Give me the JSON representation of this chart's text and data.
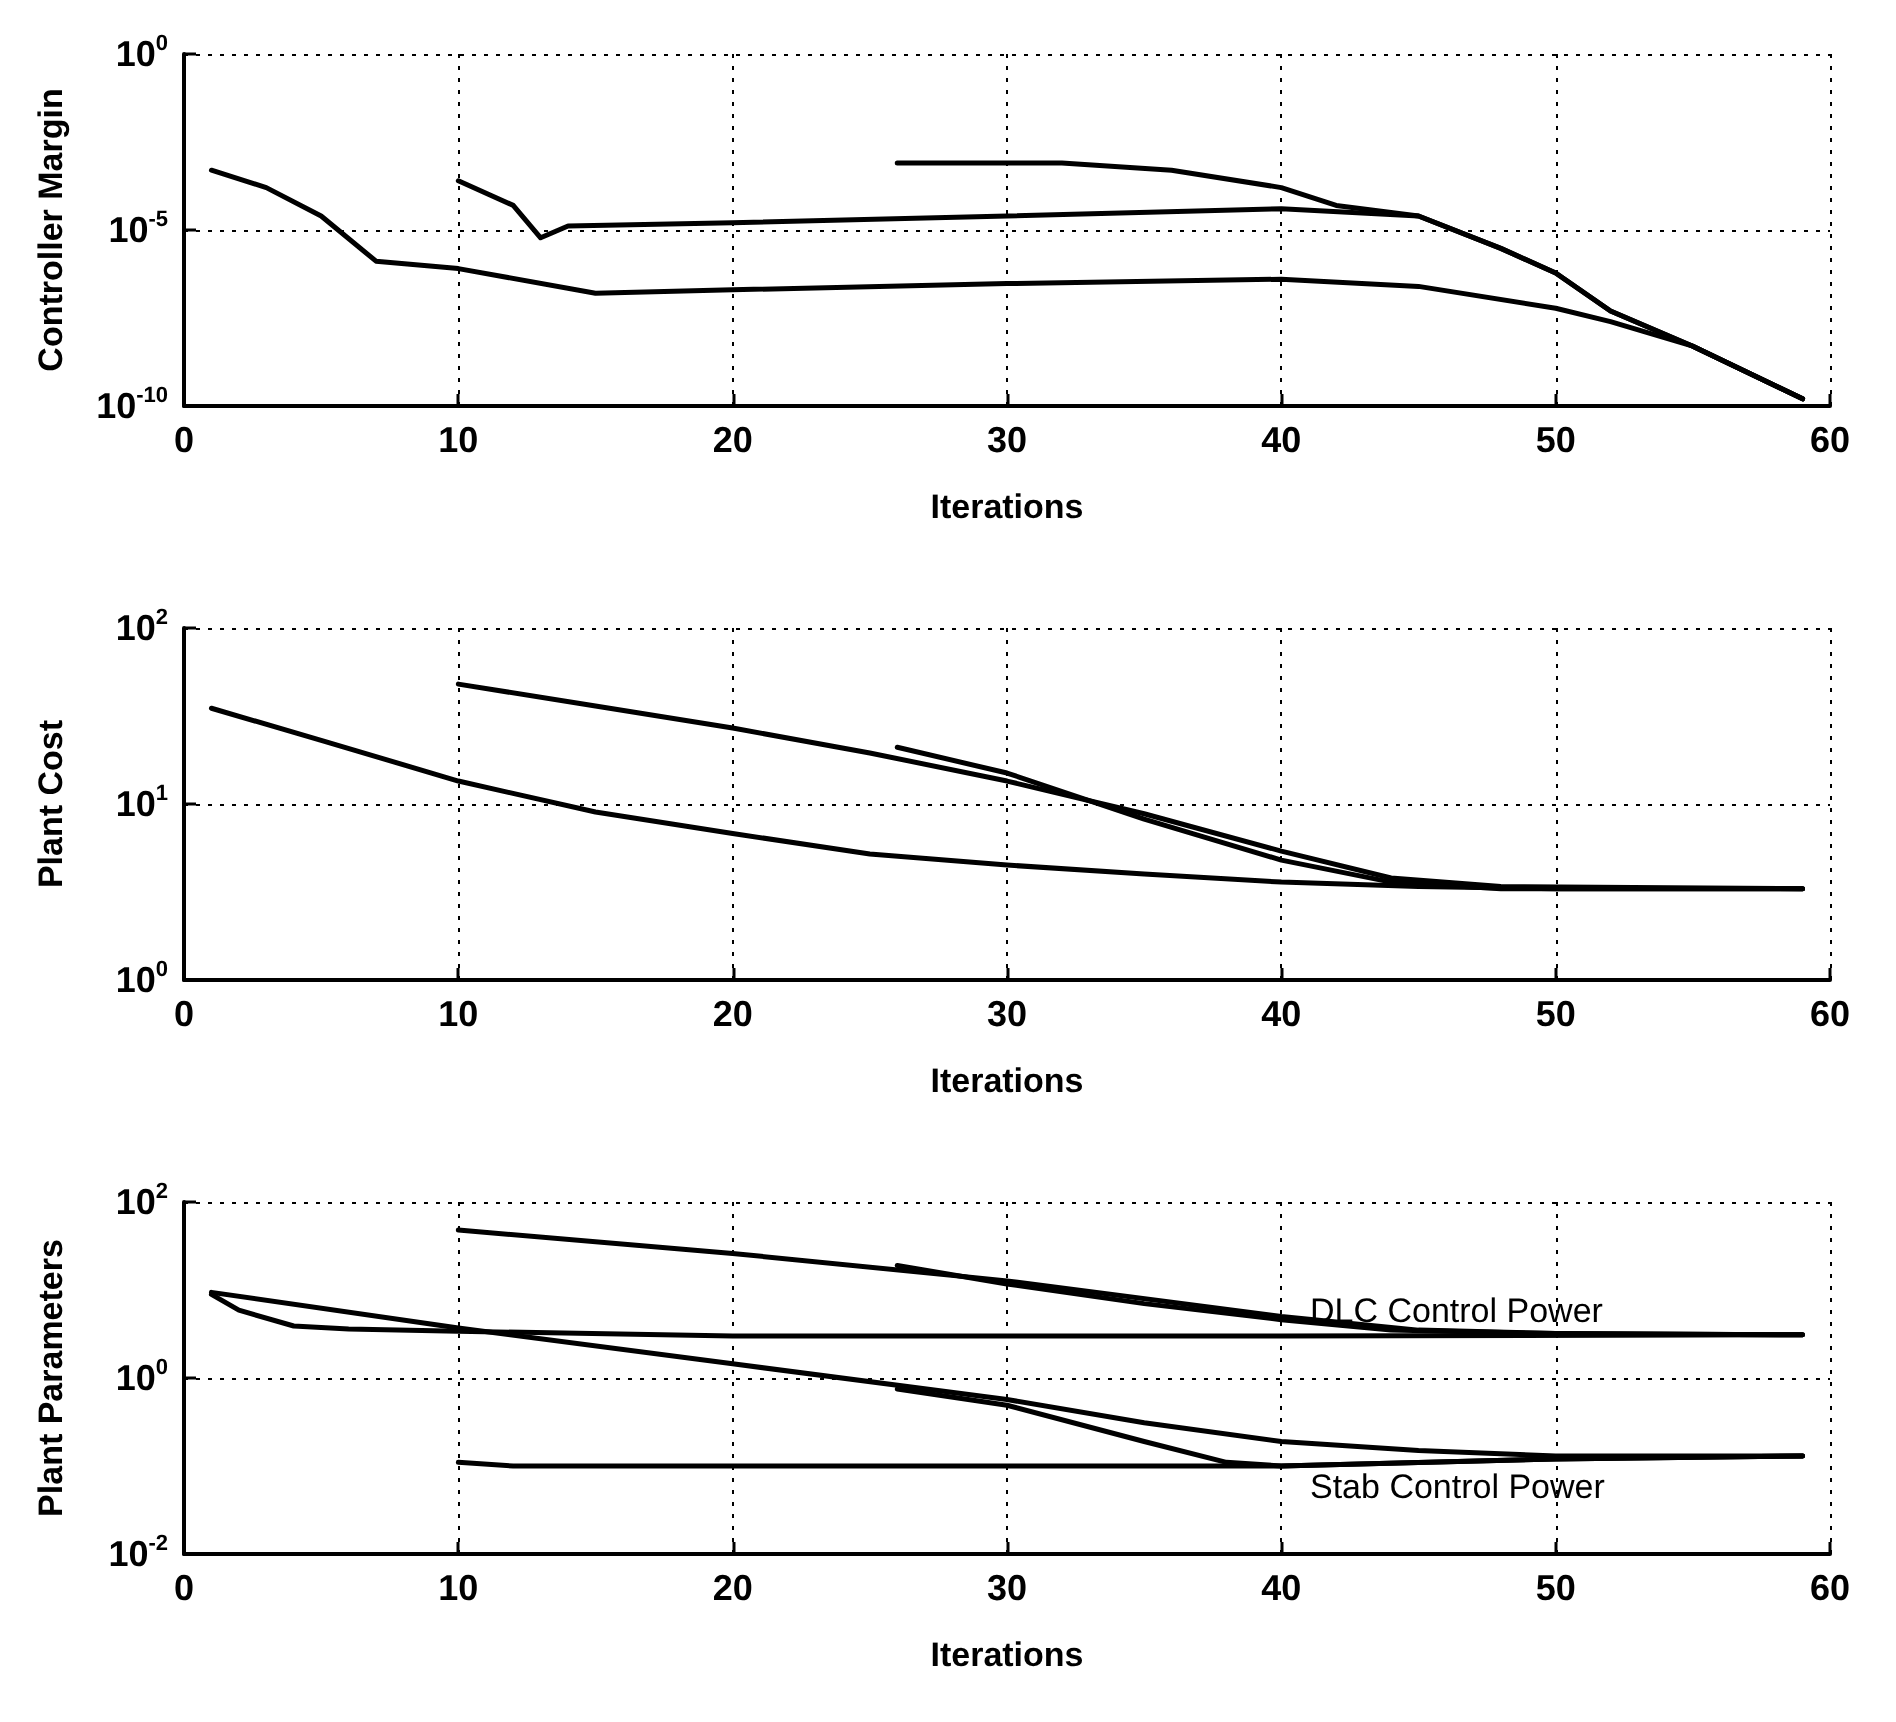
{
  "chart_data": [
    {
      "type": "line",
      "xlabel": "Iterations",
      "ylabel": "Controller Margin",
      "log": "y",
      "grid": true,
      "marker": "none",
      "line_style": "solid",
      "xlim": [
        0,
        60
      ],
      "xticks": [
        0,
        10,
        20,
        30,
        40,
        50,
        60
      ],
      "ylim": [
        1e-10,
        1
      ],
      "yticks": [
        {
          "value": 1e-10,
          "label": "10$^{-10}$"
        },
        {
          "value": 1e-05,
          "label": "10$^{-5}$"
        },
        {
          "value": 1,
          "label": "10$^{0}$"
        }
      ],
      "series": [
        {
          "color": "#000000",
          "x": [
            1,
            3,
            5,
            7,
            10,
            15,
            20,
            30,
            40,
            45,
            50,
            52,
            55,
            59
          ],
          "values": [
            0.0005,
            0.00016,
            2.5e-05,
            1.3e-06,
            8e-07,
            1.6e-07,
            2e-07,
            3e-07,
            4e-07,
            2.5e-07,
            6e-08,
            2.5e-08,
            5e-09,
            1.6e-10
          ]
        },
        {
          "color": "#000000",
          "x": [
            10,
            12,
            13,
            14,
            20,
            30,
            40,
            45,
            48,
            50,
            52,
            55,
            59
          ],
          "values": [
            0.00025,
            5e-05,
            6e-06,
            1.3e-05,
            1.6e-05,
            2.5e-05,
            4e-05,
            2.5e-05,
            3e-06,
            6e-07,
            5e-08,
            5e-09,
            1.6e-10
          ]
        },
        {
          "color": "#000000",
          "x": [
            26,
            32,
            36,
            40,
            42,
            45,
            48,
            50,
            52,
            55,
            59
          ],
          "values": [
            0.0008,
            0.0008,
            0.0005,
            0.00016,
            5e-05,
            2.5e-05,
            3e-06,
            6e-07,
            5e-08,
            5e-09,
            1.6e-10
          ]
        }
      ]
    },
    {
      "type": "line",
      "xlabel": "Iterations",
      "ylabel": "Plant Cost",
      "log": "y",
      "grid": true,
      "marker": "none",
      "line_style": "solid",
      "xlim": [
        0,
        60
      ],
      "xticks": [
        0,
        10,
        20,
        30,
        40,
        50,
        60
      ],
      "ylim": [
        1,
        100
      ],
      "yticks": [
        {
          "value": 1,
          "label": "10$^{0}$"
        },
        {
          "value": 10,
          "label": "10$^{1}$"
        },
        {
          "value": 100,
          "label": "10$^{2}$"
        }
      ],
      "series": [
        {
          "color": "#000000",
          "x": [
            1,
            5,
            10,
            15,
            20,
            25,
            30,
            35,
            40,
            45,
            50,
            59
          ],
          "values": [
            35,
            23,
            13.5,
            9,
            6.8,
            5.2,
            4.5,
            4,
            3.6,
            3.4,
            3.3,
            3.3
          ]
        },
        {
          "color": "#000000",
          "x": [
            10,
            15,
            20,
            25,
            30,
            35,
            40,
            44,
            48,
            59
          ],
          "values": [
            48,
            36,
            27,
            19.5,
            13.5,
            8.8,
            5.4,
            3.8,
            3.4,
            3.3
          ]
        },
        {
          "color": "#000000",
          "x": [
            26,
            30,
            35,
            40,
            44,
            48,
            59
          ],
          "values": [
            21,
            15,
            8.2,
            4.8,
            3.6,
            3.3,
            3.3
          ]
        }
      ]
    },
    {
      "type": "line",
      "xlabel": "Iterations",
      "ylabel": "Plant Parameters",
      "log": "y",
      "grid": true,
      "marker": "none",
      "line_style": "solid",
      "xlim": [
        0,
        60
      ],
      "xticks": [
        0,
        10,
        20,
        30,
        40,
        50,
        60
      ],
      "ylim": [
        0.01,
        100
      ],
      "yticks": [
        {
          "value": 0.01,
          "label": "10$^{-2}$"
        },
        {
          "value": 1,
          "label": "10$^{0}$"
        },
        {
          "value": 100,
          "label": "10$^{2}$"
        }
      ],
      "annotations": [
        "DLC Control Power",
        "Stab Control Power"
      ],
      "series": [
        {
          "color": "#000000",
          "x": [
            10,
            20,
            30,
            40,
            45,
            50,
            59
          ],
          "values": [
            48,
            26,
            12.7,
            5,
            3.5,
            3.2,
            3.1
          ]
        },
        {
          "color": "#000000",
          "x": [
            26,
            30,
            35,
            40,
            44,
            50,
            59
          ],
          "values": [
            19,
            11.7,
            7,
            4.6,
            3.5,
            3.2,
            3.1
          ]
        },
        {
          "color": "#000000",
          "x": [
            1,
            2,
            4,
            6,
            10,
            20,
            30,
            40,
            59
          ],
          "values": [
            8.9,
            5.9,
            3.9,
            3.6,
            3.4,
            3.0,
            3.0,
            3.0,
            3.1
          ]
        },
        {
          "color": "#000000",
          "x": [
            1,
            10,
            20,
            30,
            35,
            40,
            45,
            50,
            59
          ],
          "values": [
            9.4,
            3.7,
            1.45,
            0.57,
            0.31,
            0.19,
            0.15,
            0.13,
            0.13
          ]
        },
        {
          "color": "#000000",
          "x": [
            26,
            30,
            35,
            38,
            40,
            50,
            59
          ],
          "values": [
            0.75,
            0.49,
            0.19,
            0.11,
            0.1,
            0.12,
            0.13
          ]
        },
        {
          "color": "#000000",
          "x": [
            10,
            12,
            30,
            40,
            50,
            59
          ],
          "values": [
            0.11,
            0.1,
            0.1,
            0.1,
            0.12,
            0.13
          ]
        }
      ]
    }
  ]
}
